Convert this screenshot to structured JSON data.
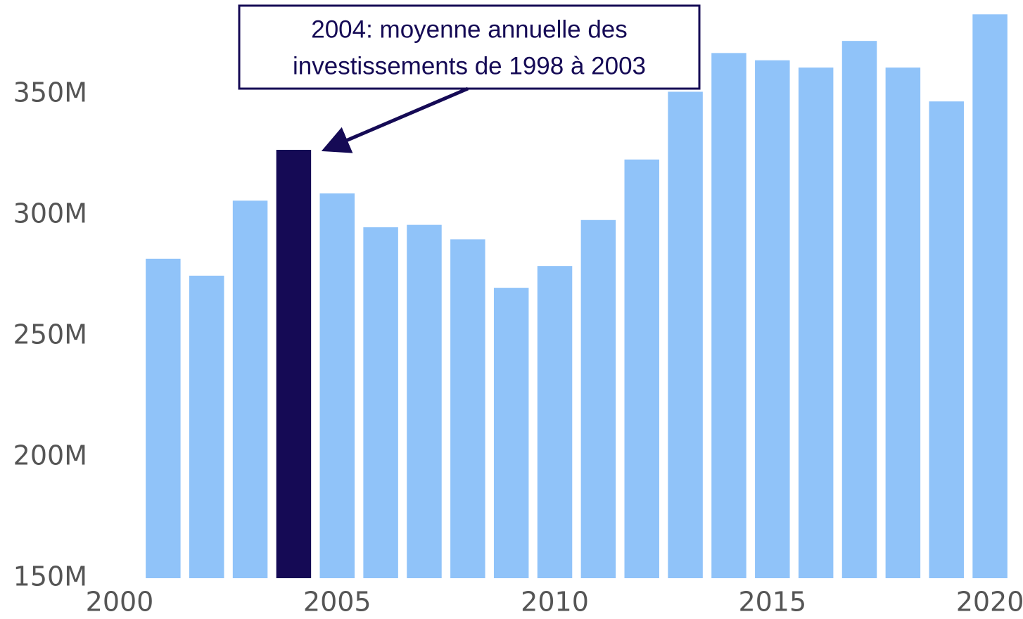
{
  "chart_data": {
    "type": "bar",
    "annotation": [
      "2004: moyenne annuelle des",
      "investissements de 1998 à 2003"
    ],
    "x": [
      2001,
      2002,
      2003,
      2004,
      2005,
      2006,
      2007,
      2008,
      2009,
      2010,
      2011,
      2012,
      2013,
      2014,
      2015,
      2016,
      2017,
      2018,
      2019,
      2020
    ],
    "values": [
      282000000,
      275000000,
      306000000,
      327000000,
      309000000,
      295000000,
      296000000,
      290000000,
      270000000,
      279000000,
      298000000,
      323000000,
      351000000,
      367000000,
      364000000,
      361000000,
      372000000,
      361000000,
      347000000,
      383000000
    ],
    "colors": [
      "#90c3f9",
      "#90c3f9",
      "#90c3f9",
      "#150a55",
      "#90c3f9",
      "#90c3f9",
      "#90c3f9",
      "#90c3f9",
      "#90c3f9",
      "#90c3f9",
      "#90c3f9",
      "#90c3f9",
      "#90c3f9",
      "#90c3f9",
      "#90c3f9",
      "#90c3f9",
      "#90c3f9",
      "#90c3f9",
      "#90c3f9",
      "#90c3f9"
    ],
    "xlim": [
      2000,
      2020.5
    ],
    "xticks": [
      2000,
      2005,
      2010,
      2015,
      2020
    ],
    "ylim": [
      150000000,
      386000000
    ],
    "yticks": [
      {
        "value": 150000000,
        "label": "150M"
      },
      {
        "value": 200000000,
        "label": "200M"
      },
      {
        "value": 250000000,
        "label": "250M"
      },
      {
        "value": 300000000,
        "label": "300M"
      },
      {
        "value": 350000000,
        "label": "350M"
      }
    ],
    "grid": false
  }
}
